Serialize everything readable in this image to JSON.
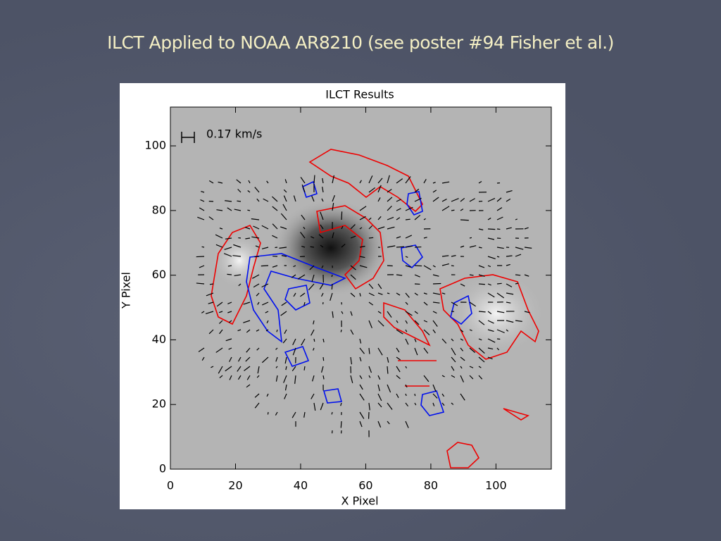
{
  "slide": {
    "title": "ILCT Applied to NOAA AR8210  (see poster #94 Fisher et al.)"
  },
  "chart_data": {
    "type": "image",
    "title": "ILCT Results",
    "x_label": "X Pixel",
    "y_label": "Y Pixel",
    "annotation": "0.17 km/s",
    "xlim": [
      0,
      117
    ],
    "ylim": [
      0,
      112
    ],
    "xticks": [
      0,
      20,
      40,
      60,
      80,
      100
    ],
    "yticks": [
      0,
      20,
      40,
      60,
      80,
      100
    ]
  }
}
